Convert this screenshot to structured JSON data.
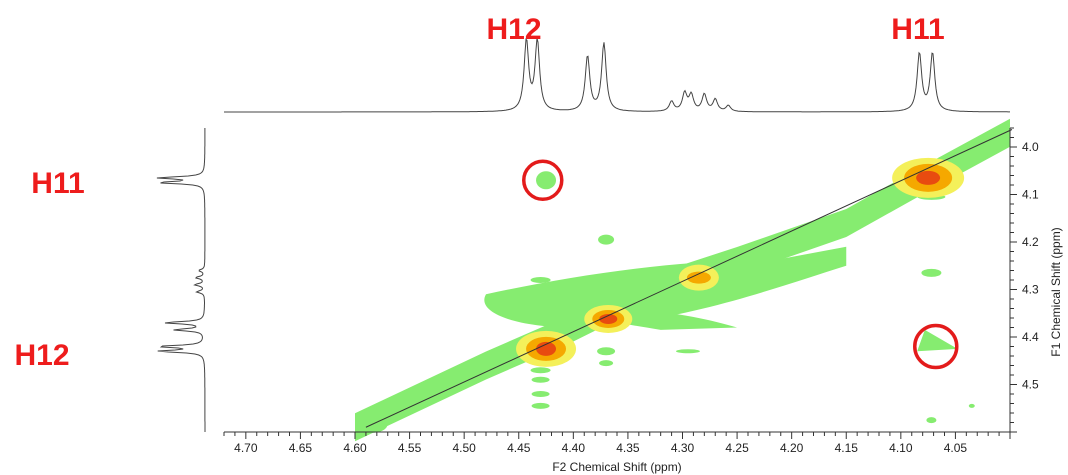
{
  "chart_data": {
    "type": "contour",
    "title": "",
    "xlabel": "F2 Chemical Shift (ppm)",
    "ylabel": "F1 Chemical Shift (ppm)",
    "xlim": [
      4.72,
      4.0
    ],
    "ylim": [
      3.96,
      4.6
    ],
    "x_ticks": [
      "4.70",
      "4.65",
      "4.60",
      "4.55",
      "4.50",
      "4.45",
      "4.40",
      "4.35",
      "4.30",
      "4.25",
      "4.20",
      "4.15",
      "4.10",
      "4.05"
    ],
    "y_ticks": [
      "4.0",
      "4.1",
      "4.2",
      "4.3",
      "4.4",
      "4.5"
    ],
    "diagonal": [
      [
        4.59,
        4.59
      ],
      [
        4.0,
        3.98
      ]
    ],
    "peak_labels": {
      "top": [
        {
          "text": "H12",
          "ppm": 4.43
        },
        {
          "text": "H11",
          "ppm": 4.075
        }
      ],
      "left": [
        {
          "text": "H11",
          "ppm": 4.075
        },
        {
          "text": "H12",
          "ppm": 4.42
        }
      ]
    },
    "diagonal_peaks": [
      {
        "f2": 4.075,
        "f1": 4.065,
        "intensity": "high"
      },
      {
        "f2": 4.425,
        "f1": 4.425,
        "intensity": "high"
      },
      {
        "f2": 4.368,
        "f1": 4.362,
        "intensity": "medium"
      },
      {
        "f2": 4.285,
        "f1": 4.275,
        "intensity": "low"
      },
      {
        "f2": 4.585,
        "f1": 4.585,
        "intensity": "low"
      }
    ],
    "highlighted_cross_peaks": [
      {
        "f2": 4.425,
        "f1": 4.07
      },
      {
        "f2": 4.072,
        "f1": 4.42
      }
    ],
    "contour_colors": {
      "low": "#86ec70",
      "mid": "#f4f05a",
      "high": "#f5a800",
      "peak": "#e84b10"
    },
    "highlight_color": "#e31b1b"
  }
}
